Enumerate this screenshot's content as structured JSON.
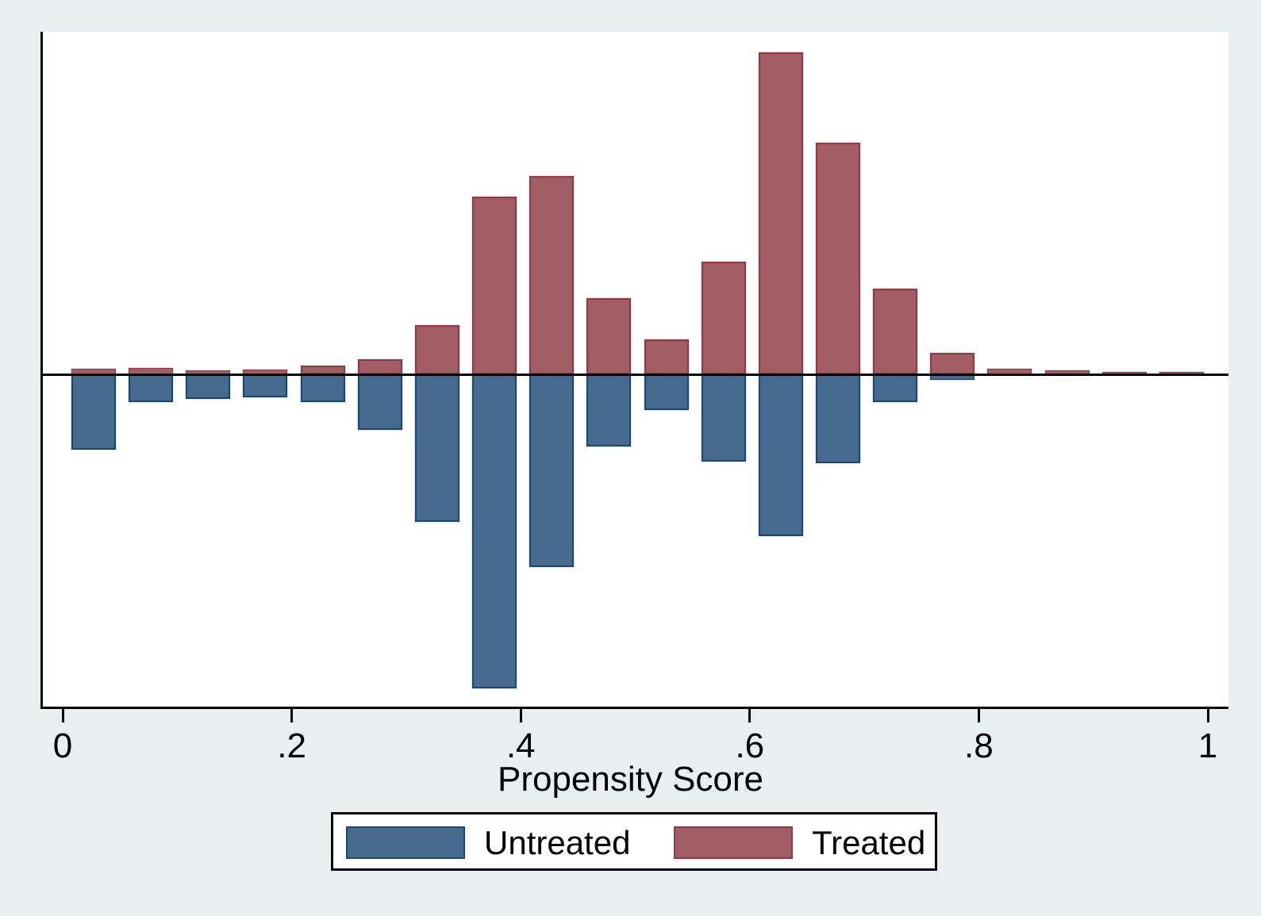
{
  "figure": {
    "background_color": "#E9F0F2",
    "plot_background_color": "#FFFFFF",
    "axis_color": "#000000"
  },
  "chart_data": {
    "type": "bar",
    "subtype": "mirrored_histogram_propensity_overlap",
    "title": "",
    "xlabel": "Propensity Score",
    "ylabel": "",
    "x_tick_labels": [
      "0",
      ".2",
      ".4",
      ".6",
      ".8",
      "1"
    ],
    "x_tick_values": [
      0,
      0.2,
      0.4,
      0.6,
      0.8,
      1
    ],
    "xlim": [
      0,
      1.018
    ],
    "ylim_density_units": [
      -4.89,
      5.01
    ],
    "y_axis_labels_shown": false,
    "grid": false,
    "legend_position": "bottom-center",
    "bin_width": 0.05,
    "bin_starts": [
      0,
      0.05,
      0.1,
      0.15,
      0.2,
      0.25,
      0.3,
      0.35,
      0.4,
      0.45,
      0.5,
      0.55,
      0.6,
      0.65,
      0.7,
      0.75,
      0.8,
      0.85,
      0.9,
      0.95
    ],
    "series": [
      {
        "name": "Treated",
        "direction": "up",
        "fill_color": "#A25C63",
        "border_color": "#8B3A42",
        "densities": [
          0.081,
          0.093,
          0.058,
          0.07,
          0.128,
          0.22,
          0.719,
          2.597,
          2.899,
          1.113,
          0.51,
          1.646,
          4.707,
          3.386,
          1.252,
          0.313,
          0.081,
          0.058,
          0.035,
          0.035
        ]
      },
      {
        "name": "Untreated",
        "direction": "down",
        "fill_color": "#466A8D",
        "border_color": "#1A476F",
        "densities": [
          1.101,
          0.406,
          0.359,
          0.336,
          0.406,
          0.812,
          2.157,
          4.591,
          2.817,
          1.055,
          0.522,
          1.275,
          2.365,
          1.299,
          0.406,
          0.081,
          0,
          0,
          0,
          0
        ]
      }
    ]
  },
  "legend": {
    "items": [
      {
        "label": "Untreated",
        "fill_color": "#466A8D",
        "border_color": "#1A476F"
      },
      {
        "label": "Treated",
        "fill_color": "#A25C63",
        "border_color": "#8B3A42"
      }
    ]
  }
}
